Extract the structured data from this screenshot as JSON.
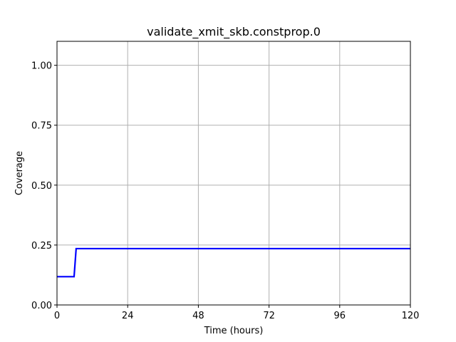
{
  "chart_data": {
    "type": "line",
    "title": "validate_xmit_skb.constprop.0",
    "xlabel": "Time (hours)",
    "ylabel": "Coverage",
    "xlim": [
      0,
      120
    ],
    "ylim": [
      0,
      1.1
    ],
    "grid": true,
    "x_ticks": [
      0,
      24,
      48,
      72,
      96,
      120
    ],
    "x_tick_labels": [
      "0",
      "24",
      "48",
      "72",
      "96",
      "120"
    ],
    "y_ticks": [
      0,
      0.25,
      0.5,
      0.75,
      1.0
    ],
    "y_tick_labels": [
      "0.00",
      "0.25",
      "0.50",
      "0.75",
      "1.00"
    ],
    "series": [
      {
        "color": "#0000ff",
        "x": [
          0,
          5.8,
          6.5,
          120
        ],
        "y": [
          0.118,
          0.118,
          0.235,
          0.235
        ]
      }
    ]
  }
}
